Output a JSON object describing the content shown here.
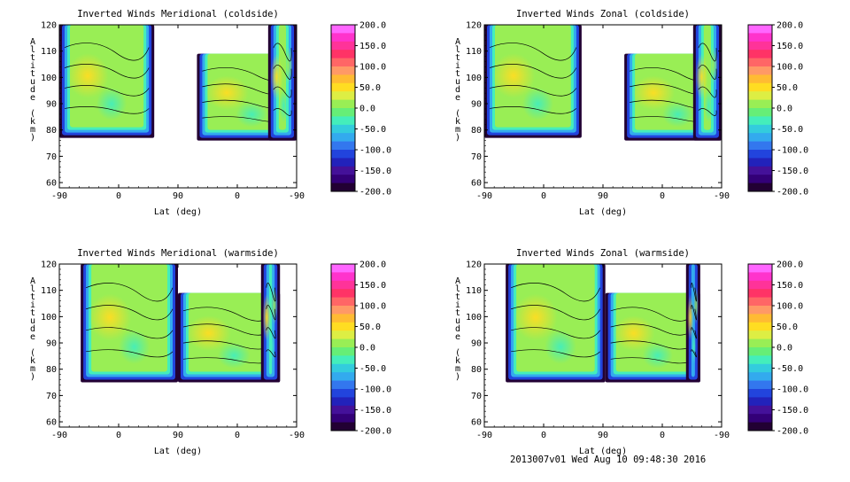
{
  "footer": "2013007v01 Wed Aug 10 09:48:30 2016",
  "colorbar": {
    "labels": [
      "200.0",
      "150.0",
      "100.0",
      "50.0",
      "0.0",
      "-50.0",
      "-100.0",
      "-150.0",
      "-200.0"
    ],
    "colors": [
      "#ff66ff",
      "#ff33cc",
      "#ff3399",
      "#ff3366",
      "#ff6666",
      "#ff9966",
      "#ffbb33",
      "#ffdd22",
      "#ddee44",
      "#99ee55",
      "#66ee77",
      "#44eebb",
      "#33ccdd",
      "#33aaee",
      "#3377ee",
      "#2244dd",
      "#2222bb",
      "#441199",
      "#330077",
      "#220033"
    ]
  },
  "chart_data": [
    {
      "type": "heatmap",
      "title": "Inverted Winds Meridional (coldside)",
      "xlabel": "Lat (deg)",
      "ylabel": "Altitude (km)",
      "x_ticks": [
        "-90",
        "0",
        "90",
        "0",
        "-90"
      ],
      "y_ticks": [
        "60",
        "70",
        "80",
        "90",
        "100",
        "110",
        "120"
      ],
      "ylim": [
        58,
        120
      ],
      "zlim": [
        -200,
        200
      ],
      "shapes": [
        {
          "x0": 0.0,
          "x1": 0.4,
          "top": 120,
          "bottom": 77
        },
        {
          "x0": 0.58,
          "x1": 1.0,
          "top": 109,
          "bottom": 76
        },
        {
          "x0": 0.88,
          "x1": 1.0,
          "top": 120,
          "bottom": 76
        }
      ]
    },
    {
      "type": "heatmap",
      "title": "Inverted Winds Zonal (coldside)",
      "xlabel": "Lat (deg)",
      "ylabel": "Altitude (km)",
      "x_ticks": [
        "-90",
        "0",
        "90",
        "0",
        "-90"
      ],
      "y_ticks": [
        "60",
        "70",
        "80",
        "90",
        "100",
        "110",
        "120"
      ],
      "ylim": [
        58,
        120
      ],
      "zlim": [
        -200,
        200
      ],
      "shapes": [
        {
          "x0": 0.0,
          "x1": 0.41,
          "top": 120,
          "bottom": 77
        },
        {
          "x0": 0.59,
          "x1": 1.0,
          "top": 109,
          "bottom": 76
        },
        {
          "x0": 0.88,
          "x1": 1.0,
          "top": 120,
          "bottom": 76
        }
      ]
    },
    {
      "type": "heatmap",
      "title": "Inverted Winds Meridional (warmside)",
      "xlabel": "Lat (deg)",
      "ylabel": "Altitude (km)",
      "x_ticks": [
        "-90",
        "0",
        "90",
        "0",
        "-90"
      ],
      "y_ticks": [
        "60",
        "70",
        "80",
        "90",
        "100",
        "110",
        "120"
      ],
      "ylim": [
        58,
        120
      ],
      "zlim": [
        -200,
        200
      ],
      "shapes": [
        {
          "x0": 0.09,
          "x1": 0.5,
          "top": 120,
          "bottom": 75
        },
        {
          "x0": 0.5,
          "x1": 0.93,
          "top": 109,
          "bottom": 75
        },
        {
          "x0": 0.85,
          "x1": 0.93,
          "top": 120,
          "bottom": 75
        }
      ]
    },
    {
      "type": "heatmap",
      "title": "Inverted Winds Zonal (warmside)",
      "xlabel": "Lat (deg)",
      "ylabel": "Altitude (km)",
      "x_ticks": [
        "-90",
        "0",
        "90",
        "0",
        "-90"
      ],
      "y_ticks": [
        "60",
        "70",
        "80",
        "90",
        "100",
        "110",
        "120"
      ],
      "ylim": [
        58,
        120
      ],
      "zlim": [
        -200,
        200
      ],
      "shapes": [
        {
          "x0": 0.09,
          "x1": 0.51,
          "top": 120,
          "bottom": 75
        },
        {
          "x0": 0.51,
          "x1": 0.91,
          "top": 109,
          "bottom": 75
        },
        {
          "x0": 0.85,
          "x1": 0.91,
          "top": 120,
          "bottom": 75
        }
      ]
    }
  ]
}
